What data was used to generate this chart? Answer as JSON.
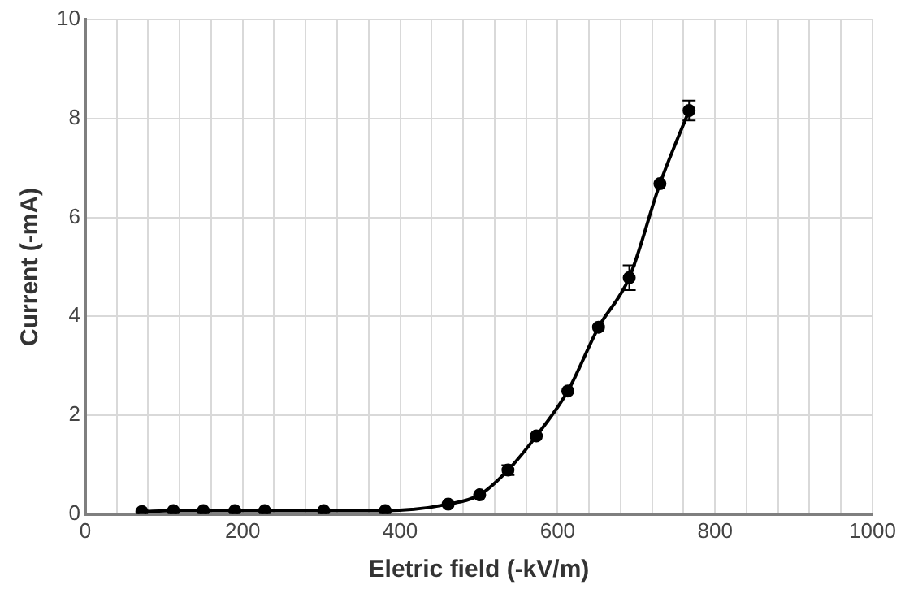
{
  "chart_data": {
    "type": "line",
    "xlabel": "Eletric field (-kV/m)",
    "ylabel": "Current (-mA)",
    "x": [
      72,
      112,
      150,
      190,
      228,
      303,
      381,
      461,
      501,
      537,
      573,
      613,
      652,
      691,
      730,
      767
    ],
    "values": [
      0.05,
      0.07,
      0.07,
      0.07,
      0.07,
      0.07,
      0.07,
      0.2,
      0.39,
      0.89,
      1.58,
      2.49,
      3.78,
      4.78,
      6.68,
      8.16
    ],
    "errors": [
      null,
      null,
      null,
      null,
      null,
      null,
      null,
      null,
      null,
      0.1,
      null,
      null,
      null,
      0.25,
      null,
      0.2
    ],
    "color": "#000000",
    "marker": "circle",
    "line_style": "solid",
    "xlim": [
      0,
      1000
    ],
    "xticks": [
      0,
      {
        "value": 40,
        "label": null
      },
      {
        "value": 80,
        "label": null
      },
      {
        "value": 120,
        "label": null
      },
      {
        "value": 160,
        "label": null
      },
      200,
      {
        "value": 240,
        "label": null
      },
      {
        "value": 280,
        "label": null
      },
      {
        "value": 320,
        "label": null
      },
      {
        "value": 360,
        "label": null
      },
      400,
      {
        "value": 440,
        "label": null
      },
      {
        "value": 480,
        "label": null
      },
      {
        "value": 520,
        "label": null
      },
      {
        "value": 560,
        "label": null
      },
      600,
      {
        "value": 640,
        "label": null
      },
      {
        "value": 680,
        "label": null
      },
      {
        "value": 720,
        "label": null
      },
      {
        "value": 760,
        "label": null
      },
      800,
      {
        "value": 840,
        "label": null
      },
      {
        "value": 880,
        "label": null
      },
      {
        "value": 920,
        "label": null
      },
      {
        "value": 960,
        "label": null
      },
      1000
    ],
    "ylim": [
      0,
      10
    ],
    "yticks": [
      0,
      2,
      4,
      6,
      8,
      10
    ],
    "grid": true,
    "legend": false
  }
}
